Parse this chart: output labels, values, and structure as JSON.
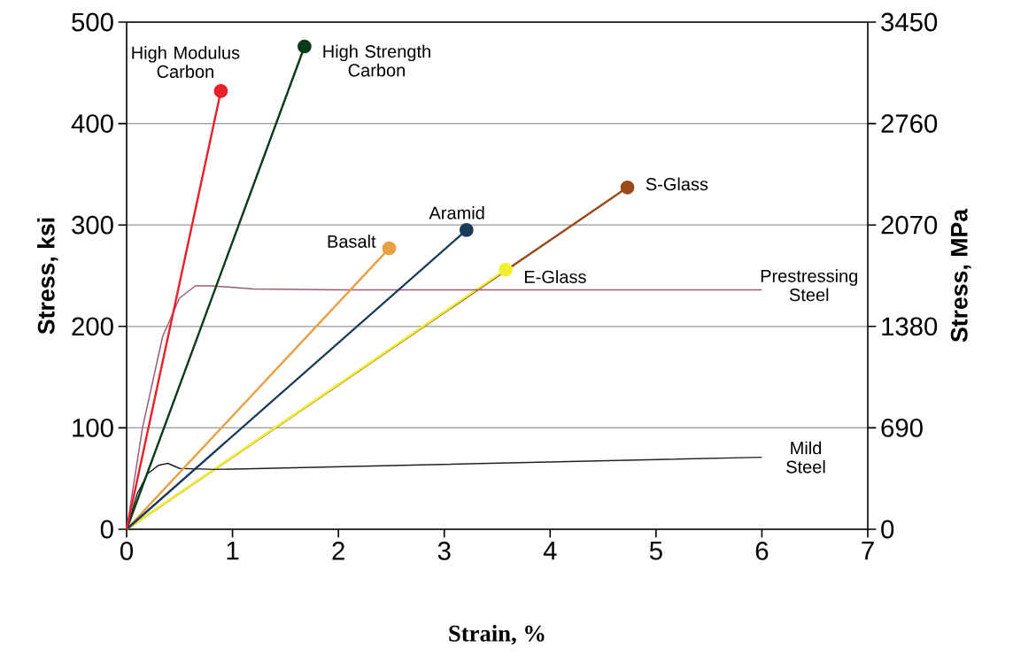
{
  "chart_data": {
    "type": "line",
    "xlabel": "Strain, %",
    "ylabel": "Stress, ksi",
    "y2label": "Stress, MPa",
    "xlim": [
      0,
      7
    ],
    "xticks": [
      0,
      1,
      2,
      3,
      4,
      5,
      6,
      7
    ],
    "ylim": [
      0,
      500
    ],
    "yticks": [
      0,
      100,
      200,
      300,
      400,
      500
    ],
    "y2lim": [
      0,
      3450
    ],
    "y2ticks": [
      0,
      690,
      1380,
      2070,
      2760,
      3450
    ],
    "grid": "y",
    "line_style": "solid",
    "series": [
      {
        "name": "S-Glass",
        "color": "#9a4a1a",
        "marker": "circle",
        "x": [
          0,
          4.73
        ],
        "values": [
          0,
          337
        ]
      },
      {
        "name": "E-Glass",
        "color": "#f0f030",
        "marker": "circle",
        "x": [
          0,
          3.58
        ],
        "values": [
          0,
          256
        ]
      },
      {
        "name": "Mild Steel",
        "color": "#222222",
        "marker": "none",
        "x": [
          0,
          0.1,
          0.2,
          0.3,
          0.39,
          0.5,
          0.84,
          6
        ],
        "values": [
          0,
          35,
          55,
          63,
          65,
          60,
          59,
          71
        ]
      },
      {
        "name": "Prestressing Steel",
        "color": "#9a5a7a",
        "marker": "none",
        "x": [
          0,
          0.15,
          0.34,
          0.5,
          0.65,
          0.8,
          1.2,
          2,
          6
        ],
        "values": [
          0,
          100,
          190,
          228,
          240,
          240,
          237,
          236,
          236
        ]
      },
      {
        "name": "Basalt",
        "color": "#e8a040",
        "marker": "circle",
        "x": [
          0,
          2.48
        ],
        "values": [
          0,
          277
        ]
      },
      {
        "name": "Aramid",
        "color": "#1a3a5c",
        "marker": "circle",
        "x": [
          0,
          3.21
        ],
        "values": [
          0,
          295
        ]
      },
      {
        "name": "High Strength Carbon",
        "color": "#0a3a1a",
        "marker": "circle",
        "x": [
          0,
          1.68
        ],
        "values": [
          0,
          476
        ]
      },
      {
        "name": "High Modulus Carbon",
        "color": "#e8202a",
        "marker": "circle",
        "x": [
          0,
          0.89
        ],
        "values": [
          0,
          432
        ]
      }
    ]
  }
}
